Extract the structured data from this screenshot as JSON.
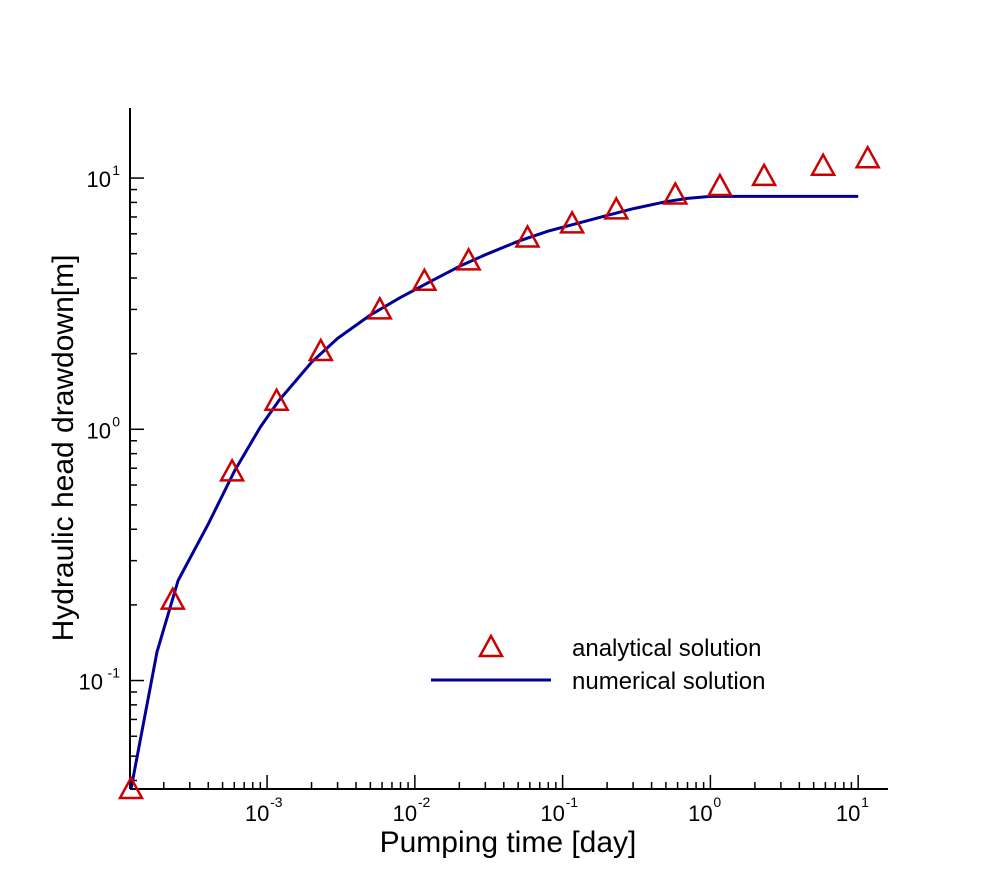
{
  "chart_data": {
    "type": "scatter",
    "xlabel": "Pumping time [day]",
    "ylabel": "Hydraulic head drawdown[m]",
    "xscale": "log",
    "yscale": "log",
    "xlim": [
      0.00012,
      13
    ],
    "ylim": [
      0.037,
      17.5
    ],
    "x_major_ticks": [
      {
        "base": "10",
        "exp": "-3",
        "value": 0.001
      },
      {
        "base": "10",
        "exp": "-2",
        "value": 0.01
      },
      {
        "base": "10",
        "exp": "-1",
        "value": 0.1
      },
      {
        "base": "10",
        "exp": "0",
        "value": 1
      },
      {
        "base": "10",
        "exp": "1",
        "value": 10
      }
    ],
    "y_major_ticks": [
      {
        "base": "10",
        "exp": "-1",
        "value": 0.1
      },
      {
        "base": "10",
        "exp": "0",
        "value": 1
      },
      {
        "base": "10",
        "exp": "1",
        "value": 10
      }
    ],
    "legend_position": "lower-right",
    "series": [
      {
        "name": "analytical solution",
        "style": "markers",
        "marker": "triangle",
        "color": "#cc0000",
        "x": [
          0.00012,
          0.00023,
          0.00058,
          0.00116,
          0.00231,
          0.00579,
          0.0116,
          0.0231,
          0.0579,
          0.116,
          0.231,
          0.579,
          1.16,
          2.31,
          5.79,
          11.6
        ],
        "y": [
          0.037,
          0.21,
          0.68,
          1.3,
          2.05,
          3.0,
          3.9,
          4.7,
          5.8,
          6.6,
          7.5,
          8.6,
          9.3,
          10.2,
          11.2,
          12.0
        ]
      },
      {
        "name": "numerical solution",
        "style": "line",
        "color": "#000099",
        "x": [
          0.00012,
          0.00018,
          0.00025,
          0.0004,
          0.0006,
          0.0009,
          0.0012,
          0.002,
          0.003,
          0.005,
          0.008,
          0.012,
          0.02,
          0.03,
          0.05,
          0.08,
          0.12,
          0.2,
          0.3,
          0.5,
          0.7,
          1.0,
          2.0,
          5.0,
          10.0
        ],
        "y": [
          0.037,
          0.13,
          0.25,
          0.42,
          0.68,
          1.02,
          1.3,
          1.85,
          2.3,
          2.85,
          3.35,
          3.8,
          4.45,
          4.95,
          5.6,
          6.15,
          6.55,
          7.1,
          7.55,
          8.05,
          8.3,
          8.45,
          8.45,
          8.45,
          8.45
        ]
      }
    ]
  }
}
